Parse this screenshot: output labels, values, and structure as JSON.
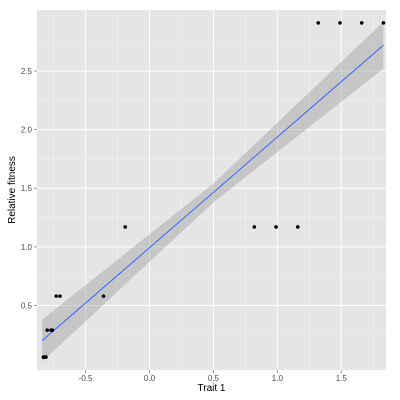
{
  "chart_data": {
    "type": "scatter",
    "xlabel": "Trait 1",
    "ylabel": "Relative fitness",
    "xlim": [
      -0.88,
      1.85
    ],
    "ylim": [
      -0.05,
      3.02
    ],
    "x_ticks": [
      -0.5,
      0.0,
      0.5,
      1.0,
      1.5
    ],
    "x_tick_labels": [
      "-0.5",
      "0.0",
      "0.5",
      "1.0",
      "1.5"
    ],
    "y_ticks": [
      0.5,
      1.0,
      1.5,
      2.0,
      2.5
    ],
    "y_tick_labels": [
      "0.5",
      "1.0",
      "1.5",
      "2.0",
      "2.5"
    ],
    "grid": true,
    "legend": "none",
    "points": [
      {
        "x": -0.83,
        "y": 0.06
      },
      {
        "x": -0.82,
        "y": 0.06
      },
      {
        "x": -0.81,
        "y": 0.06
      },
      {
        "x": -0.8,
        "y": 0.29
      },
      {
        "x": -0.77,
        "y": 0.29
      },
      {
        "x": -0.76,
        "y": 0.29
      },
      {
        "x": -0.73,
        "y": 0.58
      },
      {
        "x": -0.7,
        "y": 0.58
      },
      {
        "x": -0.36,
        "y": 0.58
      },
      {
        "x": -0.19,
        "y": 1.17
      },
      {
        "x": 0.82,
        "y": 1.17
      },
      {
        "x": 0.99,
        "y": 1.17
      },
      {
        "x": 1.16,
        "y": 1.17
      },
      {
        "x": 1.32,
        "y": 2.91
      },
      {
        "x": 1.49,
        "y": 2.91
      },
      {
        "x": 1.66,
        "y": 2.91
      },
      {
        "x": 1.83,
        "y": 2.91
      }
    ],
    "fit": {
      "method": "linear",
      "x_start": -0.84,
      "y_start": 0.2,
      "x_end": 1.83,
      "y_end": 2.72,
      "ci": [
        {
          "x": -0.84,
          "lower": 0.02,
          "upper": 0.38
        },
        {
          "x": 0.5,
          "lower": 1.38,
          "upper": 1.54
        },
        {
          "x": 1.83,
          "lower": 2.52,
          "upper": 2.92
        }
      ]
    },
    "colors": {
      "panel": "#e5e5e5",
      "grid_major": "#ffffff",
      "grid_minor": "#f2f2f2",
      "points": "#000000",
      "fit_line": "#3366ff",
      "ribbon": "#999999"
    }
  }
}
